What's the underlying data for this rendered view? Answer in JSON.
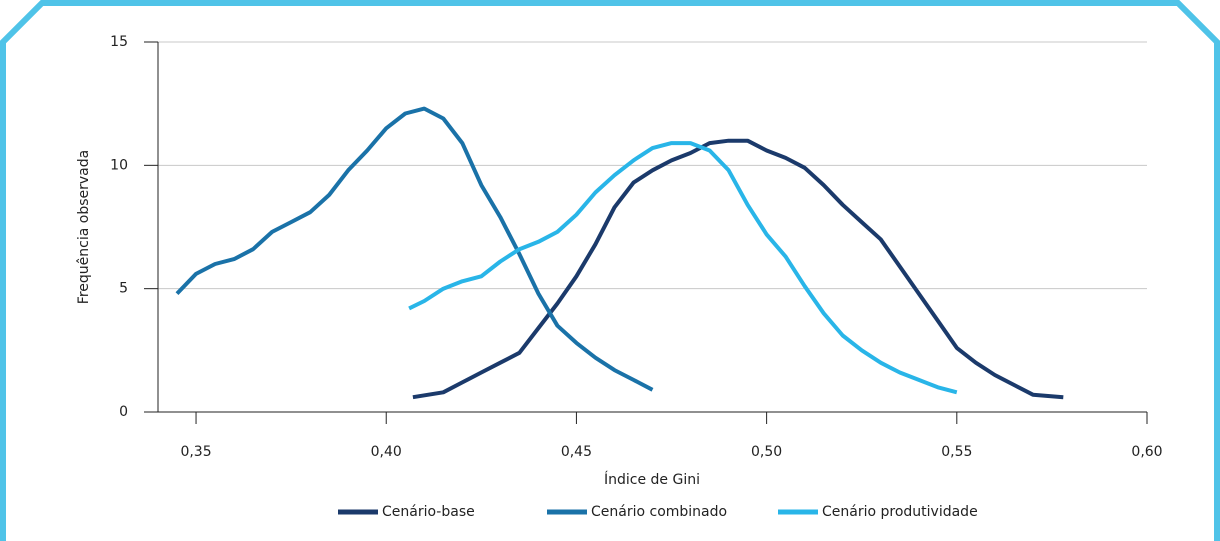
{
  "chart_data": {
    "type": "line",
    "x_label": "Índice de Gini",
    "y_label": "Frequência observada",
    "xlim": [
      0.34,
      0.6
    ],
    "ylim": [
      0,
      15
    ],
    "xticks": [
      {
        "value": 0.35,
        "label": "0,35"
      },
      {
        "value": 0.4,
        "label": "0,40"
      },
      {
        "value": 0.45,
        "label": "0,45"
      },
      {
        "value": 0.5,
        "label": "0,50"
      },
      {
        "value": 0.55,
        "label": "0,55"
      },
      {
        "value": 0.6,
        "label": "0,60"
      }
    ],
    "yticks": [
      0,
      5,
      10,
      15
    ],
    "grid": true,
    "legend": "bottom",
    "series": [
      {
        "name": "Cenário-base",
        "color": "#1b3a6b",
        "x": [
          0.407,
          0.415,
          0.42,
          0.425,
          0.43,
          0.435,
          0.44,
          0.445,
          0.45,
          0.455,
          0.46,
          0.465,
          0.47,
          0.475,
          0.48,
          0.485,
          0.49,
          0.495,
          0.5,
          0.505,
          0.51,
          0.515,
          0.52,
          0.525,
          0.53,
          0.535,
          0.54,
          0.545,
          0.55,
          0.555,
          0.56,
          0.565,
          0.57,
          0.578
        ],
        "values": [
          0.6,
          0.8,
          1.2,
          1.6,
          2.0,
          2.4,
          3.4,
          4.4,
          5.5,
          6.8,
          8.3,
          9.3,
          9.8,
          10.2,
          10.5,
          10.9,
          11.0,
          11.0,
          10.6,
          10.3,
          9.9,
          9.2,
          8.4,
          7.7,
          7.0,
          5.9,
          4.8,
          3.7,
          2.6,
          2.0,
          1.5,
          1.1,
          0.7,
          0.6
        ]
      },
      {
        "name": "Cenário combinado",
        "color": "#1a72a8",
        "x": [
          0.345,
          0.35,
          0.355,
          0.36,
          0.365,
          0.37,
          0.375,
          0.38,
          0.385,
          0.39,
          0.395,
          0.4,
          0.405,
          0.41,
          0.415,
          0.42,
          0.425,
          0.43,
          0.435,
          0.44,
          0.445,
          0.45,
          0.455,
          0.46,
          0.465,
          0.47
        ],
        "values": [
          4.8,
          5.6,
          6.0,
          6.2,
          6.6,
          7.3,
          7.7,
          8.1,
          8.8,
          9.8,
          10.6,
          11.5,
          12.1,
          12.3,
          11.9,
          10.9,
          9.2,
          7.9,
          6.4,
          4.8,
          3.5,
          2.8,
          2.2,
          1.7,
          1.3,
          0.9
        ]
      },
      {
        "name": "Cenário produtividade",
        "color": "#29b5e8",
        "x": [
          0.406,
          0.41,
          0.415,
          0.42,
          0.425,
          0.43,
          0.435,
          0.44,
          0.445,
          0.45,
          0.455,
          0.46,
          0.465,
          0.47,
          0.475,
          0.48,
          0.485,
          0.49,
          0.495,
          0.5,
          0.505,
          0.51,
          0.515,
          0.52,
          0.525,
          0.53,
          0.535,
          0.54,
          0.545,
          0.55
        ],
        "values": [
          4.2,
          4.5,
          5.0,
          5.3,
          5.5,
          6.1,
          6.6,
          6.9,
          7.3,
          8.0,
          8.9,
          9.6,
          10.2,
          10.7,
          10.9,
          10.9,
          10.6,
          9.8,
          8.4,
          7.2,
          6.3,
          5.1,
          4.0,
          3.1,
          2.5,
          2.0,
          1.6,
          1.3,
          1.0,
          0.8
        ]
      }
    ]
  }
}
